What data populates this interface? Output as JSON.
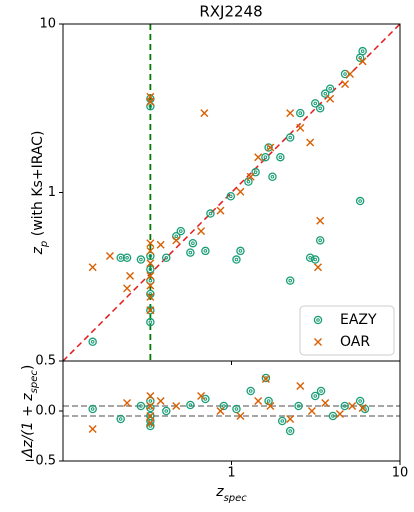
{
  "chart_data": [
    {
      "type": "scatter",
      "title": "RXJ2248",
      "ylabel": {
        "main": "z",
        "sub": "p",
        "rest": " (with Ks+IRAC)"
      },
      "log": true,
      "xlim": [
        0.1,
        10
      ],
      "ylim": [
        0.1,
        10
      ],
      "xticks": [
        1,
        10
      ],
      "yticks": [
        1,
        10
      ],
      "diagonal": true,
      "diagonal_color": "#e31a1c",
      "vline": 0.33,
      "vline_color": "#007a00",
      "legend": "lower right",
      "series": [
        {
          "name": "EAZY",
          "color": "#1b9e77",
          "marker": "ring",
          "x": [
            0.15,
            0.22,
            0.24,
            0.29,
            0.33,
            0.33,
            0.33,
            0.33,
            0.33,
            0.33,
            0.41,
            0.57,
            0.59,
            0.7,
            1.07,
            1.13,
            2.23,
            2.93,
            3.14,
            3.36,
            5.8,
            0.75,
            0.99,
            1.26,
            1.39,
            1.59,
            1.66,
            2.23,
            2.56,
            3.14,
            3.6,
            4.72,
            5.8,
            6.0,
            0.33,
            0.33,
            0.5,
            0.47,
            1.75,
            1.95,
            3.36,
            3.85
          ],
          "values": [
            0.13,
            0.41,
            0.41,
            0.4,
            0.42,
            0.35,
            0.3,
            0.25,
            0.2,
            0.17,
            0.41,
            0.44,
            0.5,
            0.45,
            0.4,
            0.45,
            0.3,
            0.41,
            0.4,
            0.52,
            0.89,
            0.75,
            0.95,
            1.16,
            1.32,
            1.62,
            1.85,
            2.12,
            2.96,
            3.38,
            3.86,
            5.05,
            6.3,
            6.9,
            3.25,
            3.6,
            0.59,
            0.55,
            1.24,
            1.62,
            3.16,
            4.13
          ]
        },
        {
          "name": "OAR",
          "color": "#d95f02",
          "marker": "x",
          "x": [
            0.15,
            0.19,
            0.24,
            0.25,
            0.33,
            0.33,
            0.33,
            0.33,
            0.33,
            0.33,
            0.33,
            0.33,
            0.33,
            0.69,
            0.38,
            0.47,
            0.66,
            0.86,
            1.13,
            1.3,
            1.44,
            1.7,
            2.23,
            2.56,
            3.36,
            3.26,
            5.05,
            6.0,
            3.85,
            4.72,
            2.93
          ],
          "values": [
            0.36,
            0.42,
            0.27,
            0.32,
            0.5,
            0.45,
            0.38,
            0.32,
            0.28,
            0.24,
            0.2,
            3.7,
            3.45,
            2.96,
            0.49,
            0.52,
            0.59,
            0.78,
            1.01,
            1.24,
            1.62,
            1.85,
            2.96,
            2.42,
            0.68,
            0.36,
            5.05,
            6.0,
            3.6,
            4.4,
            1.98
          ]
        }
      ]
    },
    {
      "type": "scatter",
      "log": true,
      "xlabel": {
        "main": "z",
        "sub": "spec"
      },
      "ylabel": {
        "main": "Δz/(1 + z",
        "sub": "spec",
        "rest": ")"
      },
      "xlim": [
        0.1,
        10
      ],
      "ylim": [
        -0.5,
        0.5
      ],
      "xticks": [
        1,
        10
      ],
      "yticks": [
        {
          "value": -0.5,
          "label": "−0.5"
        },
        {
          "value": 0,
          "label": "0.0"
        },
        0.5
      ],
      "hlines": [
        -0.05,
        0.05
      ],
      "hline_color": "#888888",
      "series": [
        {
          "name": "EAZY",
          "color": "#1b9e77",
          "marker": "ring",
          "x": [
            0.15,
            0.22,
            0.29,
            0.33,
            0.33,
            0.33,
            0.33,
            0.33,
            0.41,
            0.57,
            0.7,
            0.9,
            1.07,
            1.3,
            1.6,
            1.66,
            2.0,
            2.23,
            2.5,
            3.14,
            3.4,
            4.0,
            4.7,
            5.8,
            6.2
          ],
          "values": [
            0.02,
            -0.08,
            0.05,
            0.1,
            0.03,
            -0.05,
            -0.1,
            -0.15,
            0.0,
            0.06,
            0.12,
            0.05,
            0.02,
            0.2,
            0.33,
            0.1,
            -0.1,
            -0.2,
            0.05,
            0.15,
            0.2,
            -0.05,
            0.05,
            0.1,
            0.02
          ]
        },
        {
          "name": "OAR",
          "color": "#d95f02",
          "marker": "x",
          "x": [
            0.15,
            0.24,
            0.33,
            0.33,
            0.33,
            0.33,
            0.38,
            0.47,
            0.66,
            0.86,
            1.13,
            1.44,
            1.6,
            1.7,
            2.23,
            2.56,
            3.0,
            3.6,
            4.4,
            5.2,
            6.0
          ],
          "values": [
            -0.18,
            0.08,
            0.15,
            0.05,
            -0.05,
            -0.12,
            0.1,
            0.05,
            0.15,
            0.0,
            -0.05,
            0.1,
            0.32,
            0.05,
            -0.08,
            0.25,
            0.0,
            0.08,
            -0.03,
            0.05,
            0.03
          ]
        }
      ]
    }
  ]
}
